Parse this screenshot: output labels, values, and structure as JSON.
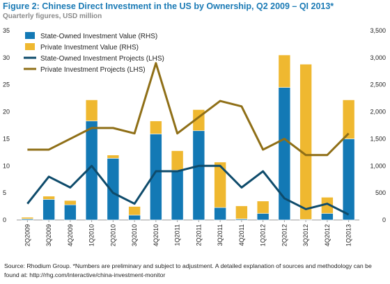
{
  "title": "Figure 2: Chinese Direct Investment in the US by Ownership, Q2 2009 – QI 2013*",
  "subtitle": "Quarterly figures, USD million",
  "source": {
    "text": "Source: Rhodium Group. *Numbers are preliminary and subject to adjustment. A detailed explanation of sources and methodology can be found at: ",
    "link": "http://rhg.com/interactive/china-investment-monitor"
  },
  "chart_data": {
    "type": "bar",
    "categories": [
      "2Q2009",
      "3Q2009",
      "4Q2009",
      "1Q2010",
      "2Q2010",
      "3Q2010",
      "4Q2010",
      "1Q2011",
      "2Q2011",
      "3Q2011",
      "4Q2011",
      "1Q2012",
      "2Q2012",
      "3Q2012",
      "4Q2012",
      "1Q2013"
    ],
    "left_axis": {
      "min": 0,
      "max": 35,
      "ticks": [
        "0",
        "5",
        "10",
        "15",
        "20",
        "25",
        "30",
        "35"
      ]
    },
    "right_axis": {
      "min": 0,
      "max": 3500,
      "ticks": [
        "0",
        "500",
        "1,000",
        "1,500",
        "2,000",
        "2,500",
        "3,000",
        "3,500"
      ]
    },
    "stacked_bars": [
      {
        "name": "State-Owned Investment Value (RHS)",
        "color": "#1379b5",
        "axis": "right",
        "values": [
          20,
          380,
          280,
          1830,
          1140,
          90,
          1590,
          920,
          1650,
          230,
          20,
          120,
          2450,
          10,
          120,
          1500
        ]
      },
      {
        "name": "Private Investment Value (RHS)",
        "color": "#efb830",
        "axis": "right",
        "values": [
          30,
          60,
          80,
          390,
          60,
          160,
          240,
          360,
          390,
          840,
          240,
          230,
          600,
          2870,
          300,
          720
        ]
      }
    ],
    "lines": [
      {
        "name": "State-Owned Investment Projects (LHS)",
        "color": "#0e4b6b",
        "axis": "left",
        "values": [
          3,
          8,
          6,
          10,
          5,
          3,
          9,
          9,
          10,
          10,
          6,
          9,
          4,
          2,
          3,
          1
        ]
      },
      {
        "name": "Private Investment Projects (LHS)",
        "color": "#8f6f17",
        "axis": "left",
        "values": [
          13,
          13,
          15,
          17,
          17,
          16,
          29,
          16,
          19,
          22,
          21,
          13,
          15,
          12,
          12,
          16
        ]
      }
    ],
    "legend_position": "top-left",
    "grid": false
  }
}
